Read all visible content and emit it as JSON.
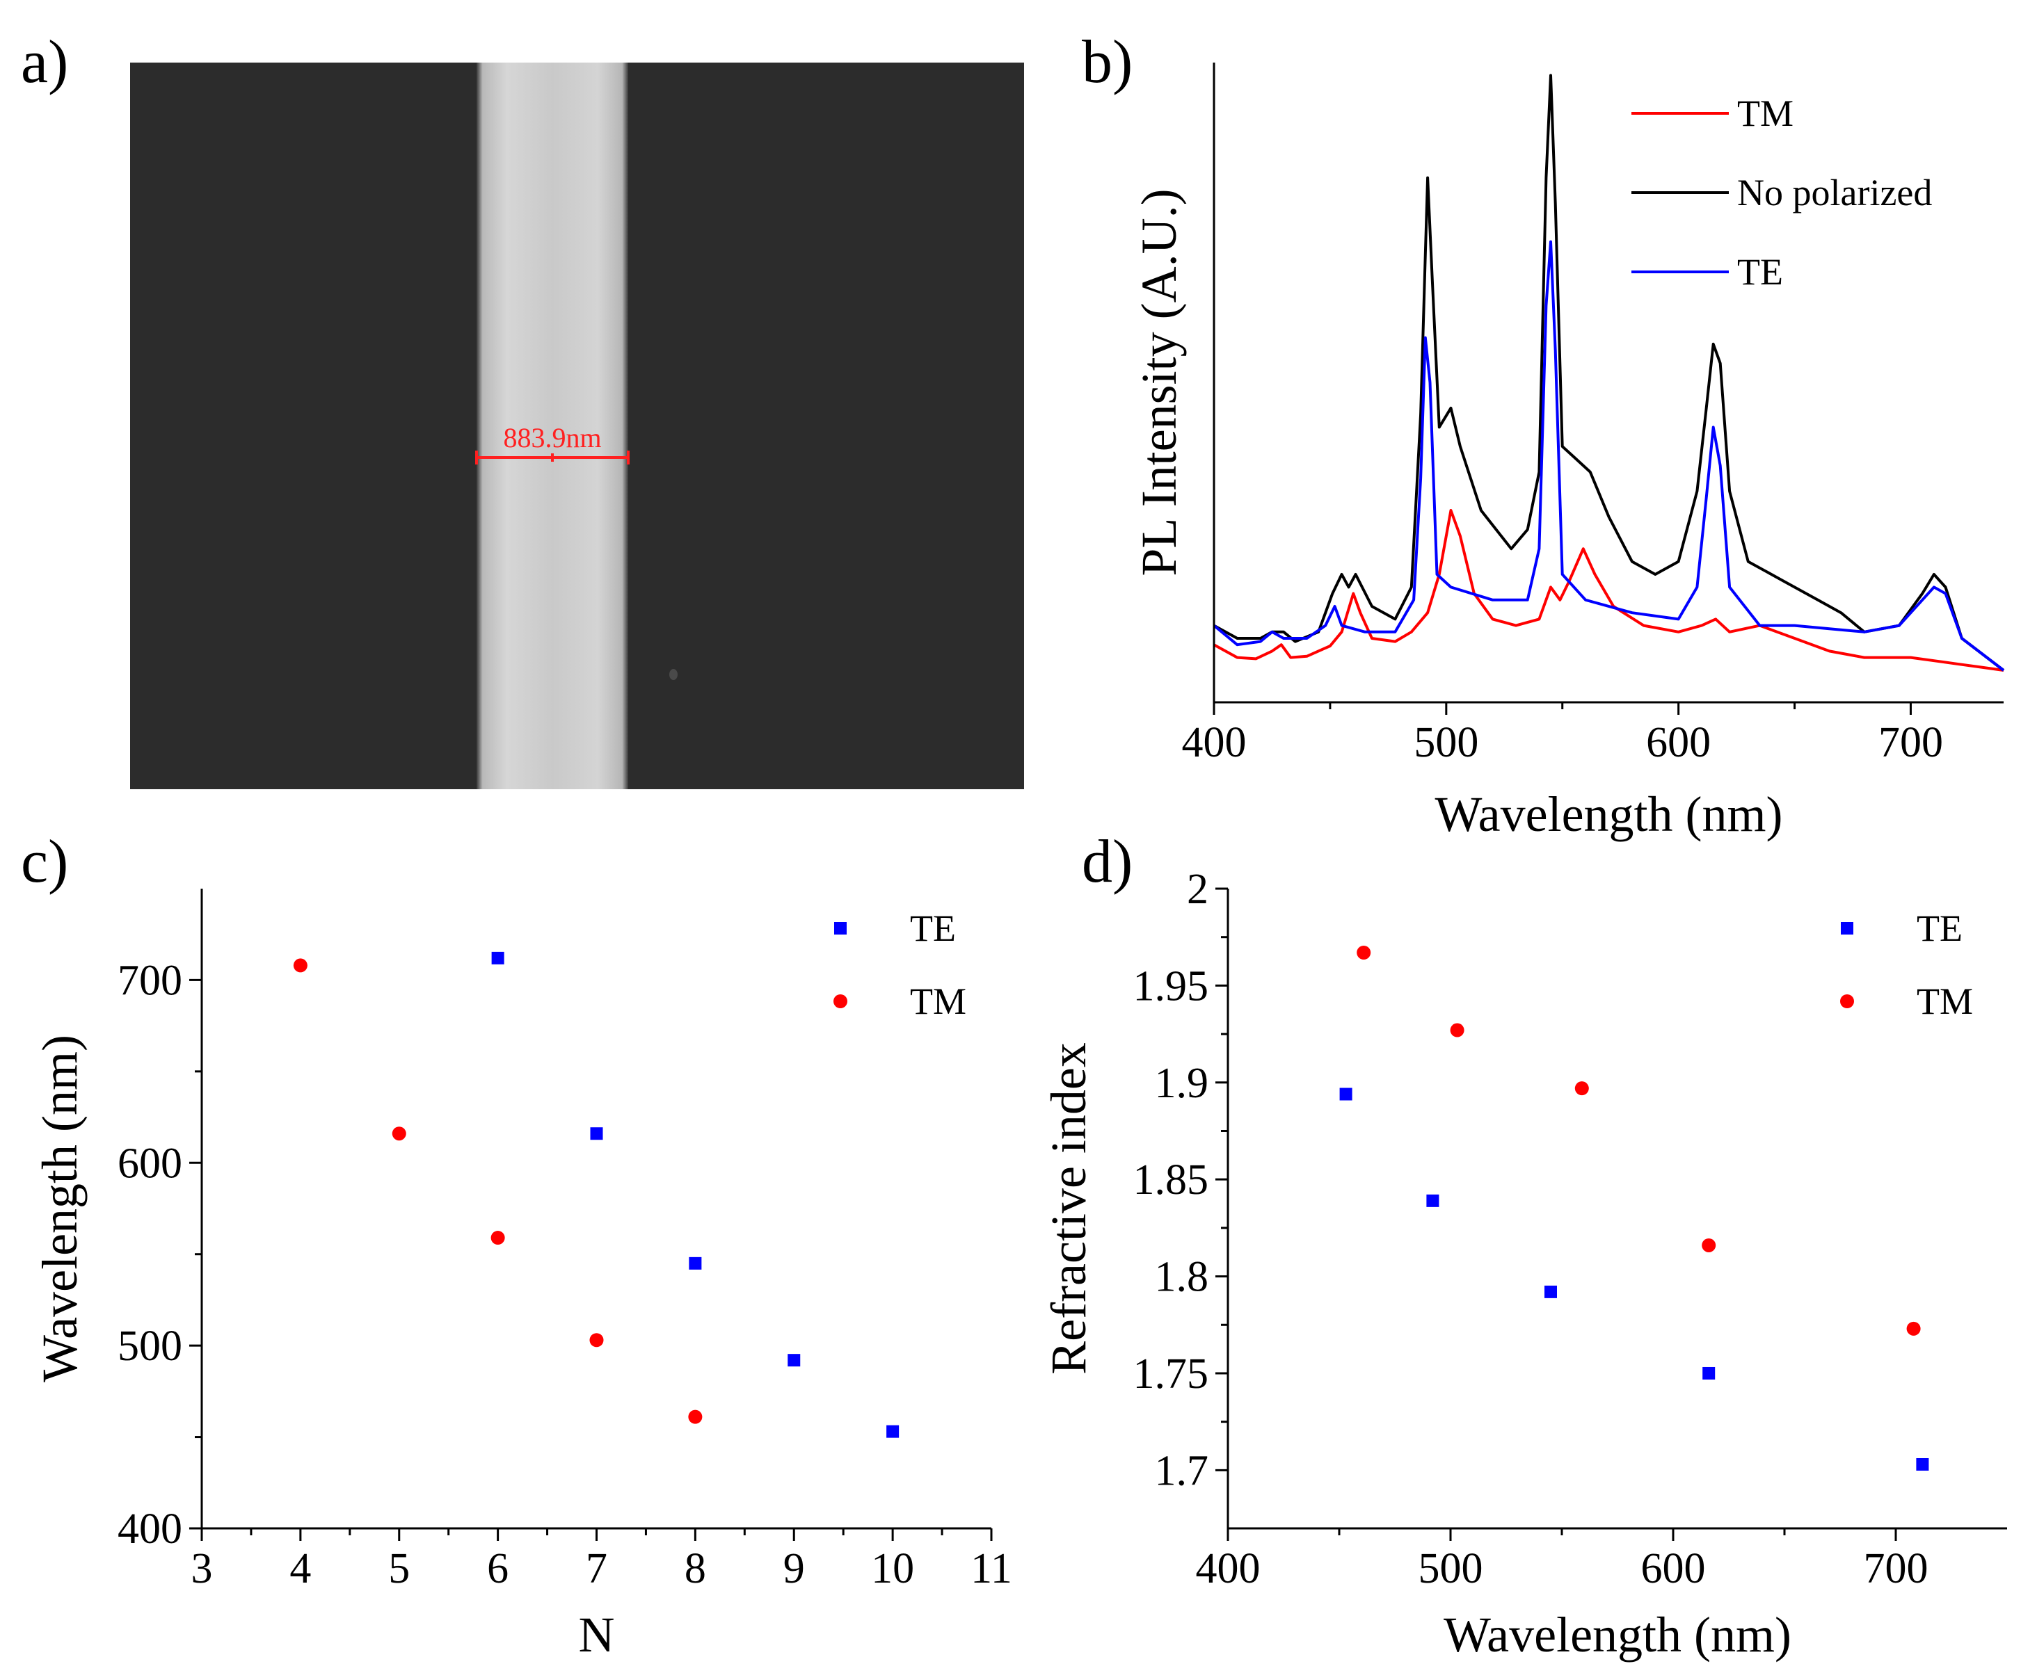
{
  "panels": {
    "a": {
      "label": "a)"
    },
    "b": {
      "label": "b)"
    },
    "c": {
      "label": "c)"
    },
    "d": {
      "label": "d)"
    }
  },
  "sem_image": {
    "scale_label": "883.9nm",
    "measure_color": "#ff2020"
  },
  "chart_data": [
    {
      "id": "b",
      "type": "line",
      "xlabel": "Wavelength (nm)",
      "ylabel": "PL Intensity (A.U.)",
      "xlim": [
        400,
        740
      ],
      "ylim": [
        0,
        1
      ],
      "xticks": [
        400,
        500,
        600,
        700
      ],
      "legend_position": "top-right",
      "series": [
        {
          "name": "TM",
          "color": "#ff0000",
          "points": [
            [
              400,
              0.09
            ],
            [
              410,
              0.07
            ],
            [
              418,
              0.068
            ],
            [
              425,
              0.08
            ],
            [
              429,
              0.09
            ],
            [
              433,
              0.07
            ],
            [
              440,
              0.072
            ],
            [
              450,
              0.088
            ],
            [
              455,
              0.11
            ],
            [
              460,
              0.17
            ],
            [
              463,
              0.14
            ],
            [
              468,
              0.1
            ],
            [
              478,
              0.095
            ],
            [
              485,
              0.11
            ],
            [
              492,
              0.14
            ],
            [
              497,
              0.2
            ],
            [
              502,
              0.3
            ],
            [
              506,
              0.26
            ],
            [
              512,
              0.17
            ],
            [
              520,
              0.13
            ],
            [
              530,
              0.12
            ],
            [
              540,
              0.13
            ],
            [
              545,
              0.18
            ],
            [
              549,
              0.16
            ],
            [
              553,
              0.19
            ],
            [
              559,
              0.24
            ],
            [
              564,
              0.2
            ],
            [
              572,
              0.15
            ],
            [
              585,
              0.12
            ],
            [
              600,
              0.11
            ],
            [
              610,
              0.12
            ],
            [
              616,
              0.13
            ],
            [
              622,
              0.11
            ],
            [
              635,
              0.12
            ],
            [
              650,
              0.1
            ],
            [
              665,
              0.08
            ],
            [
              680,
              0.07
            ],
            [
              700,
              0.07
            ],
            [
              710,
              0.065
            ],
            [
              720,
              0.06
            ],
            [
              730,
              0.055
            ],
            [
              740,
              0.05
            ]
          ]
        },
        {
          "name": "No polarized",
          "color": "#000000",
          "points": [
            [
              400,
              0.12
            ],
            [
              410,
              0.1
            ],
            [
              420,
              0.1
            ],
            [
              425,
              0.11
            ],
            [
              430,
              0.11
            ],
            [
              435,
              0.095
            ],
            [
              445,
              0.11
            ],
            [
              451,
              0.17
            ],
            [
              455,
              0.2
            ],
            [
              458,
              0.18
            ],
            [
              461,
              0.2
            ],
            [
              468,
              0.15
            ],
            [
              478,
              0.13
            ],
            [
              485,
              0.18
            ],
            [
              489,
              0.45
            ],
            [
              491,
              0.7
            ],
            [
              492,
              0.82
            ],
            [
              494,
              0.66
            ],
            [
              497,
              0.43
            ],
            [
              502,
              0.46
            ],
            [
              506,
              0.4
            ],
            [
              515,
              0.3
            ],
            [
              528,
              0.24
            ],
            [
              535,
              0.27
            ],
            [
              540,
              0.36
            ],
            [
              543,
              0.82
            ],
            [
              545,
              0.98
            ],
            [
              547,
              0.78
            ],
            [
              550,
              0.4
            ],
            [
              556,
              0.38
            ],
            [
              562,
              0.36
            ],
            [
              570,
              0.29
            ],
            [
              580,
              0.22
            ],
            [
              590,
              0.2
            ],
            [
              600,
              0.22
            ],
            [
              608,
              0.33
            ],
            [
              612,
              0.46
            ],
            [
              615,
              0.56
            ],
            [
              618,
              0.53
            ],
            [
              622,
              0.33
            ],
            [
              630,
              0.22
            ],
            [
              645,
              0.19
            ],
            [
              660,
              0.16
            ],
            [
              670,
              0.14
            ],
            [
              680,
              0.11
            ],
            [
              695,
              0.12
            ],
            [
              705,
              0.17
            ],
            [
              710,
              0.2
            ],
            [
              715,
              0.18
            ],
            [
              722,
              0.1
            ],
            [
              740,
              0.05
            ]
          ]
        },
        {
          "name": "TE",
          "color": "#0000ff",
          "points": [
            [
              400,
              0.12
            ],
            [
              410,
              0.09
            ],
            [
              420,
              0.095
            ],
            [
              425,
              0.11
            ],
            [
              430,
              0.1
            ],
            [
              440,
              0.1
            ],
            [
              448,
              0.12
            ],
            [
              452,
              0.15
            ],
            [
              455,
              0.12
            ],
            [
              465,
              0.11
            ],
            [
              478,
              0.11
            ],
            [
              486,
              0.16
            ],
            [
              489,
              0.35
            ],
            [
              491,
              0.57
            ],
            [
              493,
              0.5
            ],
            [
              496,
              0.2
            ],
            [
              502,
              0.18
            ],
            [
              520,
              0.16
            ],
            [
              535,
              0.16
            ],
            [
              540,
              0.24
            ],
            [
              543,
              0.62
            ],
            [
              545,
              0.72
            ],
            [
              547,
              0.55
            ],
            [
              550,
              0.2
            ],
            [
              560,
              0.16
            ],
            [
              580,
              0.14
            ],
            [
              600,
              0.13
            ],
            [
              608,
              0.18
            ],
            [
              612,
              0.32
            ],
            [
              615,
              0.43
            ],
            [
              618,
              0.37
            ],
            [
              622,
              0.18
            ],
            [
              635,
              0.12
            ],
            [
              650,
              0.12
            ],
            [
              665,
              0.115
            ],
            [
              680,
              0.11
            ],
            [
              695,
              0.12
            ],
            [
              705,
              0.16
            ],
            [
              710,
              0.18
            ],
            [
              715,
              0.17
            ],
            [
              722,
              0.1
            ],
            [
              740,
              0.05
            ]
          ]
        }
      ]
    },
    {
      "id": "c",
      "type": "scatter",
      "xlabel": "N",
      "ylabel": "Wavelength (nm)",
      "xlim": [
        3,
        11
      ],
      "ylim": [
        400,
        750
      ],
      "xticks": [
        3,
        4,
        5,
        6,
        7,
        8,
        9,
        10,
        11
      ],
      "yticks": [
        400,
        500,
        600,
        700
      ],
      "legend_position": "top-right",
      "series": [
        {
          "name": "TE",
          "color": "#0000ff",
          "marker": "square",
          "points": [
            [
              6,
              712
            ],
            [
              7,
              616
            ],
            [
              8,
              545
            ],
            [
              9,
              492
            ],
            [
              10,
              453
            ]
          ]
        },
        {
          "name": "TM",
          "color": "#ff0000",
          "marker": "circle",
          "points": [
            [
              4,
              708
            ],
            [
              5,
              616
            ],
            [
              6,
              559
            ],
            [
              7,
              503
            ],
            [
              8,
              461
            ]
          ]
        }
      ]
    },
    {
      "id": "d",
      "type": "scatter",
      "xlabel": "Wavelength (nm)",
      "ylabel": "Refractive index",
      "xlim": [
        400,
        750
      ],
      "ylim": [
        1.67,
        2.0
      ],
      "xticks": [
        400,
        500,
        600,
        700
      ],
      "yticks": [
        1.7,
        1.75,
        1.8,
        1.85,
        1.9,
        1.95,
        2
      ],
      "legend_position": "top-right",
      "series": [
        {
          "name": "TE",
          "color": "#0000ff",
          "marker": "square",
          "points": [
            [
              453,
              1.894
            ],
            [
              492,
              1.839
            ],
            [
              545,
              1.792
            ],
            [
              616,
              1.75
            ],
            [
              712,
              1.703
            ]
          ]
        },
        {
          "name": "TM",
          "color": "#ff0000",
          "marker": "circle",
          "points": [
            [
              461,
              1.967
            ],
            [
              503,
              1.927
            ],
            [
              559,
              1.897
            ],
            [
              616,
              1.816
            ],
            [
              708,
              1.773
            ]
          ]
        }
      ]
    }
  ]
}
